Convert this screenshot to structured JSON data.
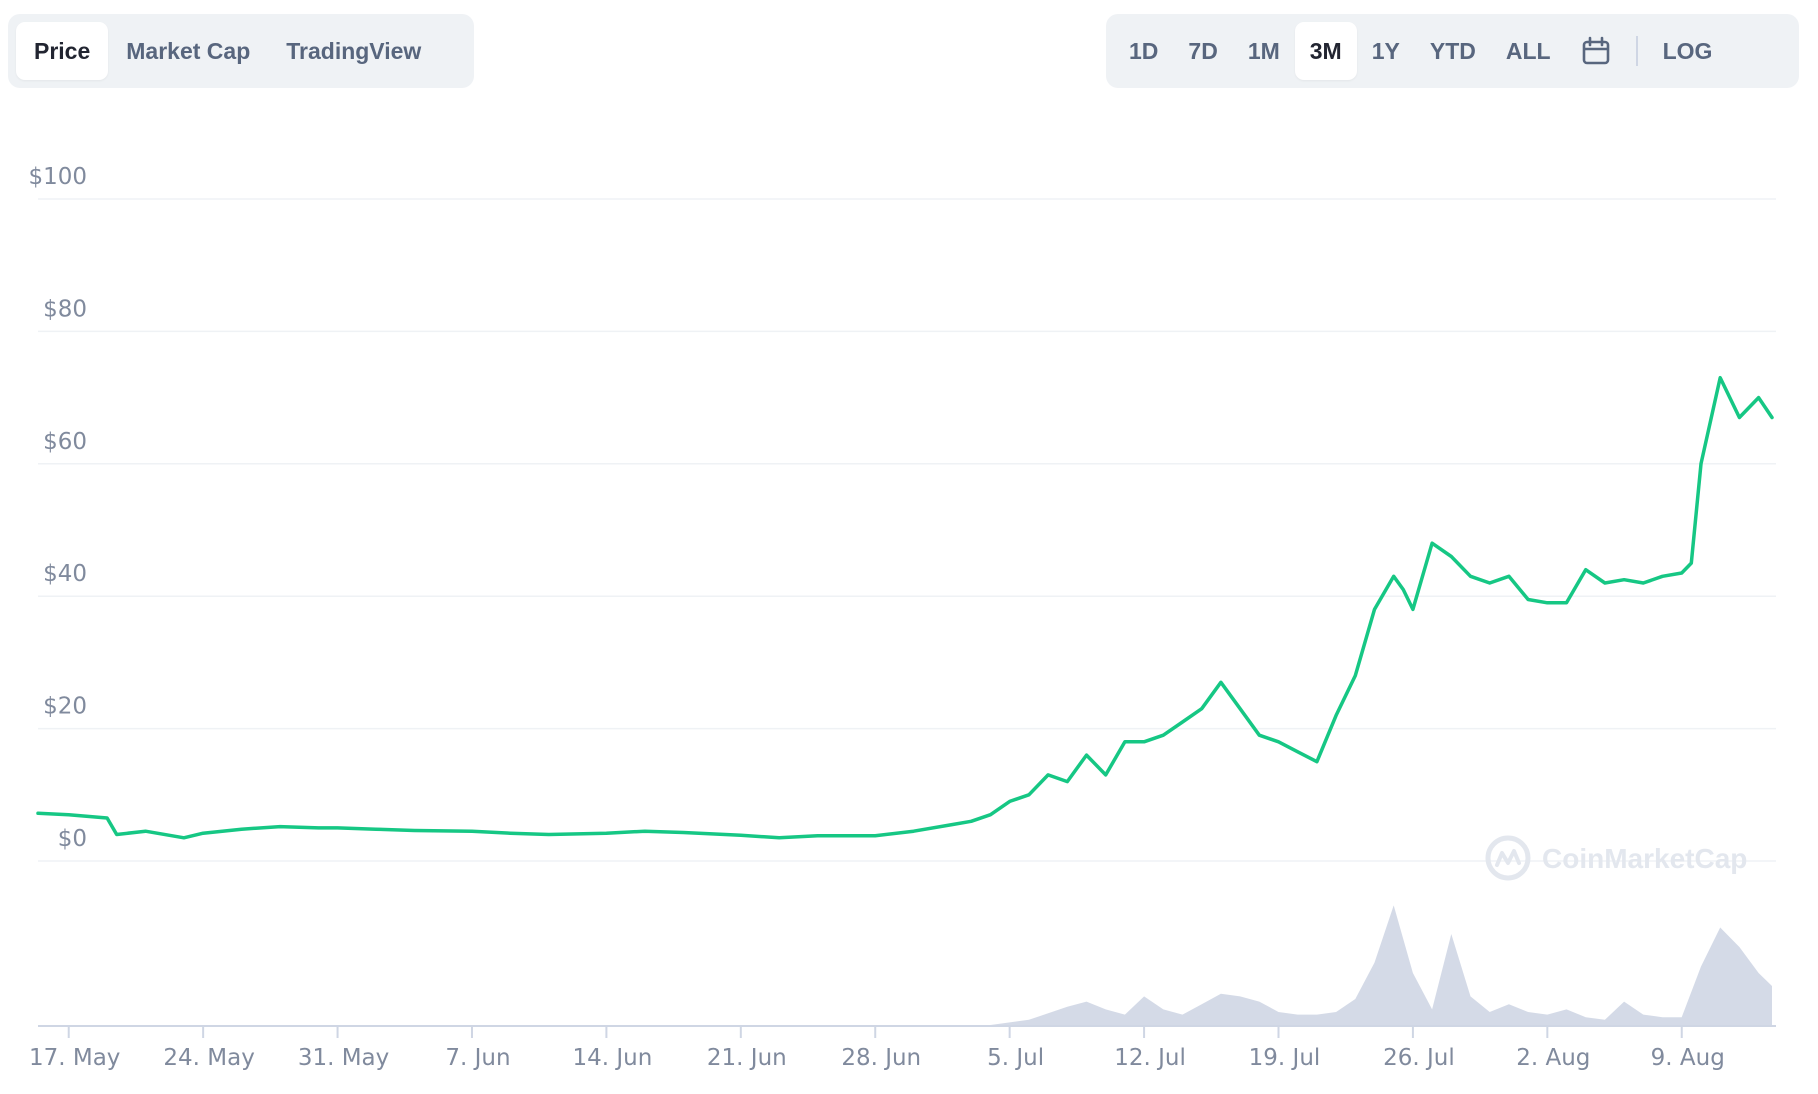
{
  "toolbar": {
    "left_tabs": [
      {
        "label": "Price",
        "active": true
      },
      {
        "label": "Market Cap",
        "active": false
      },
      {
        "label": "TradingView",
        "active": false
      }
    ],
    "ranges": [
      {
        "label": "1D",
        "active": false
      },
      {
        "label": "7D",
        "active": false
      },
      {
        "label": "1M",
        "active": false
      },
      {
        "label": "3M",
        "active": true
      },
      {
        "label": "1Y",
        "active": false
      },
      {
        "label": "YTD",
        "active": false
      },
      {
        "label": "ALL",
        "active": false
      }
    ],
    "calendar_icon": "calendar-icon",
    "log_label": "LOG"
  },
  "watermark": "CoinMarketCap",
  "colors": {
    "price_line": "#16c784",
    "volume_fill": "#cfd6e4",
    "grid": "#eff2f5",
    "axis_text": "#808a9d",
    "active_text": "#222531",
    "inactive_text": "#58667e",
    "toolbar_bg": "#eff2f5"
  },
  "chart_data": {
    "type": "line",
    "title": "",
    "xlabel": "",
    "ylabel": "",
    "ylim": [
      0,
      100
    ],
    "y_ticks": [
      "$100",
      "$80",
      "$60",
      "$40",
      "$20",
      "$0"
    ],
    "y_tick_values": [
      100,
      80,
      60,
      40,
      20,
      0
    ],
    "x_ticks": [
      "17. May",
      "24. May",
      "31. May",
      "7. Jun",
      "14. Jun",
      "21. Jun",
      "28. Jun",
      "5. Jul",
      "12. Jul",
      "19. Jul",
      "26. Jul",
      "2. Aug",
      "9. Aug"
    ],
    "x_tick_days": [
      0,
      7,
      14,
      21,
      28,
      35,
      42,
      49,
      56,
      63,
      70,
      77,
      84
    ],
    "x_domain_days": [
      -1.6,
      88.7
    ],
    "series": [
      {
        "type": "line",
        "x": [
          -1.6,
          0,
          2,
          2.5,
          4,
          6,
          7,
          9,
          11,
          13,
          14,
          16,
          18,
          21,
          23,
          25,
          28,
          30,
          32,
          35,
          37,
          39,
          42,
          44,
          46,
          47,
          48,
          49,
          50,
          51,
          52,
          53,
          54,
          55,
          56,
          57,
          58,
          59,
          60,
          61,
          62,
          63,
          64,
          65,
          66,
          67,
          68,
          69,
          69.5,
          70,
          71,
          72,
          73,
          74,
          75,
          76,
          77,
          78,
          79,
          80,
          81,
          82,
          83,
          84,
          84.5,
          85,
          86,
          87,
          88,
          88.7
        ],
        "y": [
          7.2,
          7,
          6.5,
          4,
          4.5,
          3.5,
          4.2,
          4.8,
          5.2,
          5.0,
          5.0,
          4.8,
          4.6,
          4.5,
          4.2,
          4.0,
          4.2,
          4.5,
          4.3,
          3.9,
          3.5,
          3.8,
          3.8,
          4.5,
          5.5,
          6.0,
          7.0,
          9.0,
          10.0,
          13.0,
          12.0,
          16.0,
          13.0,
          18.0,
          18.0,
          19.0,
          21.0,
          23.0,
          27.0,
          23.0,
          19.0,
          18.0,
          16.5,
          15.0,
          22.0,
          28.0,
          38.0,
          43.0,
          41.0,
          38.0,
          48.0,
          46.0,
          43.0,
          42.0,
          43.0,
          39.5,
          39.0,
          39.0,
          44.0,
          42.0,
          42.5,
          42.0,
          43.0,
          43.5,
          45.0,
          60.0,
          73.0,
          67.0,
          70.0,
          67.0
        ]
      },
      {
        "type": "area",
        "name": "volume",
        "x": [
          -1.6,
          48,
          50,
          52,
          53,
          54,
          55,
          56,
          57,
          58,
          59,
          60,
          61,
          62,
          63,
          64,
          65,
          66,
          67,
          68,
          69,
          70,
          71,
          72,
          73,
          74,
          75,
          76,
          77,
          78,
          79,
          80,
          81,
          82,
          83,
          84,
          85,
          86,
          87,
          88,
          88.7
        ],
        "y": [
          0,
          0,
          4,
          14,
          18,
          12,
          8,
          22,
          12,
          8,
          16,
          24,
          22,
          18,
          10,
          8,
          8,
          10,
          20,
          48,
          92,
          40,
          12,
          70,
          22,
          10,
          16,
          10,
          8,
          12,
          6,
          4,
          18,
          8,
          6,
          6,
          45,
          75,
          60,
          40,
          30
        ]
      }
    ]
  }
}
